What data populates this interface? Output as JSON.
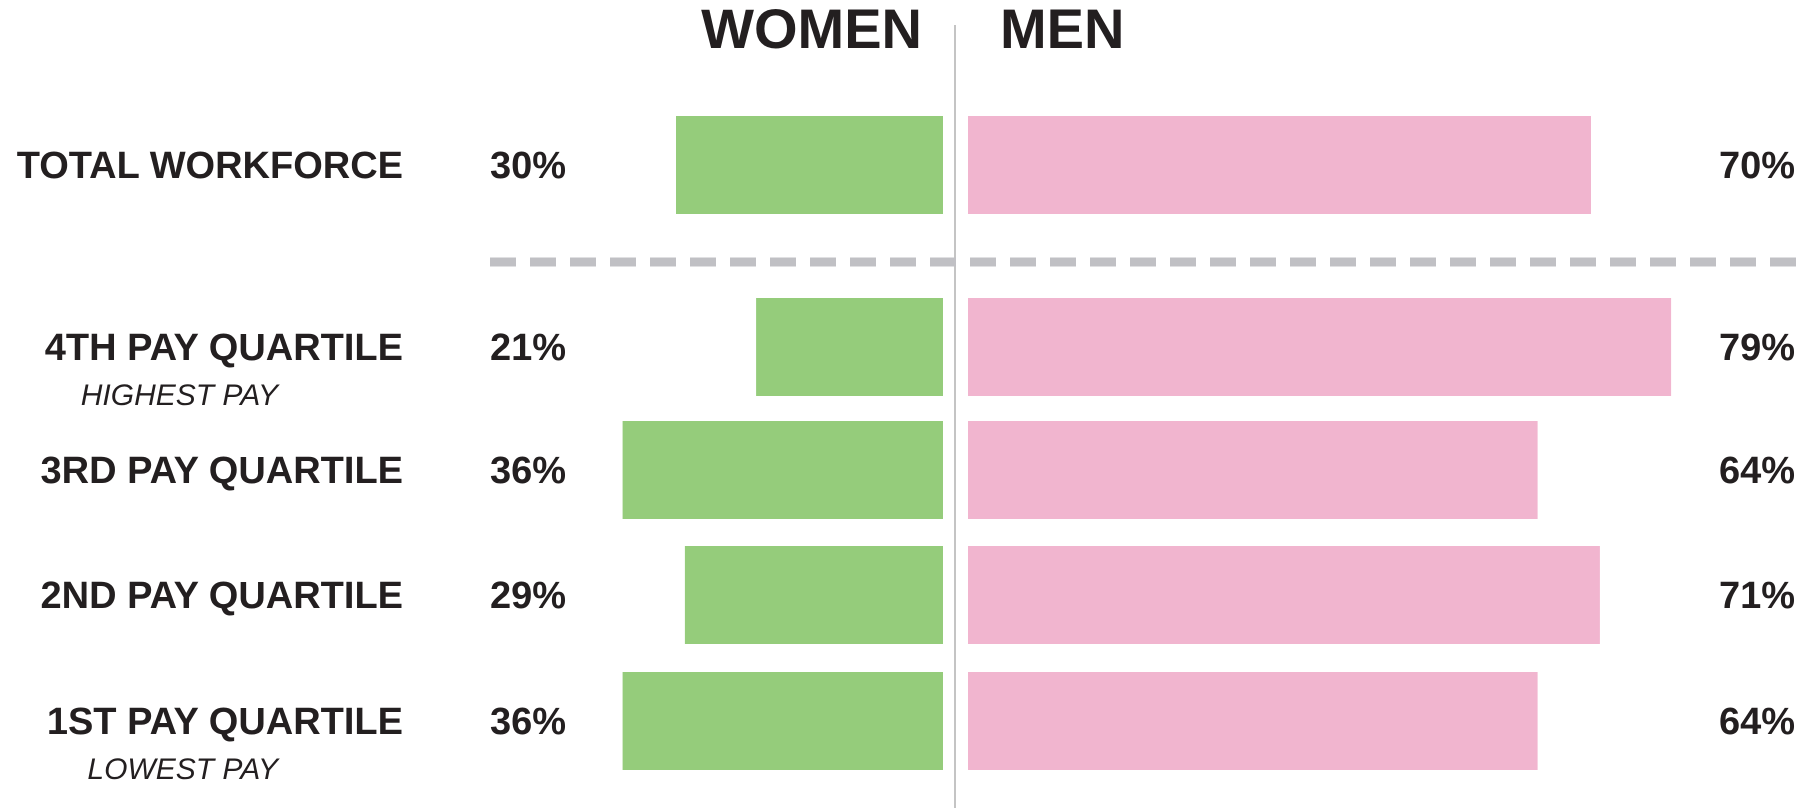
{
  "chart_data": {
    "type": "bar",
    "orientation": "horizontal-diverging",
    "headers": {
      "left": "WOMEN",
      "right": "MEN"
    },
    "rows": [
      {
        "label": "TOTAL WORKFORCE",
        "sublabel": "",
        "women": 30,
        "men": 70,
        "women_label": "30%",
        "men_label": "70%"
      },
      {
        "label": "4TH PAY QUARTILE",
        "sublabel": "HIGHEST PAY",
        "women": 21,
        "men": 79,
        "women_label": "21%",
        "men_label": "79%"
      },
      {
        "label": "3RD PAY QUARTILE",
        "sublabel": "",
        "women": 36,
        "men": 64,
        "women_label": "36%",
        "men_label": "64%"
      },
      {
        "label": "2ND PAY QUARTILE",
        "sublabel": "",
        "women": 29,
        "men": 71,
        "women_label": "29%",
        "men_label": "71%"
      },
      {
        "label": "1ST PAY QUARTILE",
        "sublabel": "LOWEST PAY",
        "women": 36,
        "men": 64,
        "women_label": "36%",
        "men_label": "64%"
      }
    ],
    "divider_after_row": 0,
    "colors": {
      "women": "#95cc7b",
      "men": "#f1b5cf",
      "axis": "#c4c4c4",
      "divider": "#c0c0c4",
      "text": "#231f20"
    }
  }
}
